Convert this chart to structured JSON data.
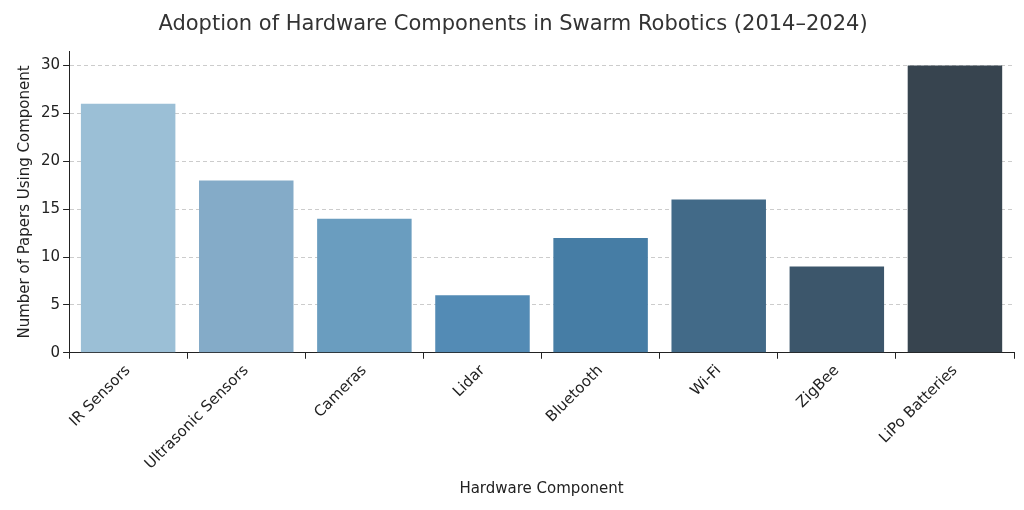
{
  "chart_data": {
    "type": "bar",
    "title": "Adoption of Hardware Components in Swarm Robotics (2014–2024)",
    "xlabel": "Hardware Component",
    "ylabel": "Number of Papers Using Component",
    "categories": [
      "IR Sensors",
      "Ultrasonic Sensors",
      "Cameras",
      "Lidar",
      "Bluetooth",
      "Wi-Fi",
      "ZigBee",
      "LiPo Batteries"
    ],
    "values": [
      26,
      18,
      14,
      6,
      12,
      16,
      9,
      30
    ],
    "colors": [
      "#9bbfd6",
      "#84abc8",
      "#6a9dbf",
      "#538bb5",
      "#467da5",
      "#426a88",
      "#3c566b",
      "#37444f"
    ],
    "ylim": [
      0,
      31.5
    ],
    "yticks": [
      0,
      5,
      10,
      15,
      20,
      25,
      30
    ],
    "grid": "y",
    "legend": false
  }
}
